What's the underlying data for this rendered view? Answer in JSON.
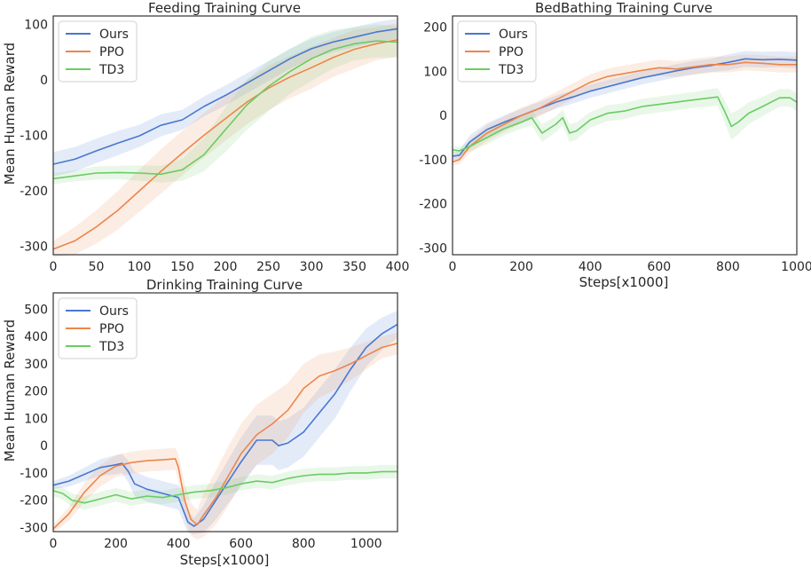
{
  "figure": {
    "colors": {
      "Ours": "#4878d0",
      "PPO": "#ee854a",
      "TD3": "#6acc64",
      "frame": "#333333",
      "legend_border": "#d0d0d0"
    }
  },
  "chart_data": [
    {
      "id": "feeding",
      "type": "line",
      "title": "Feeding Training Curve",
      "xlabel": "",
      "ylabel": "Mean Human Reward",
      "xlim": [
        0,
        400
      ],
      "ylim": [
        -315,
        115
      ],
      "xticks": [
        0,
        50,
        100,
        150,
        200,
        250,
        300,
        350,
        400
      ],
      "yticks": [
        -300,
        -200,
        -100,
        0,
        100
      ],
      "legend": "top-left",
      "series": [
        {
          "name": "Ours",
          "x": [
            0,
            25,
            50,
            75,
            100,
            125,
            150,
            175,
            200,
            225,
            250,
            275,
            300,
            325,
            350,
            375,
            400
          ],
          "y": [
            -152,
            -143,
            -128,
            -114,
            -101,
            -82,
            -72,
            -48,
            -28,
            -6,
            16,
            38,
            56,
            68,
            77,
            86,
            92
          ],
          "band": [
            22,
            22,
            22,
            22,
            20,
            20,
            18,
            18,
            18,
            18,
            18,
            18,
            18,
            18,
            18,
            18,
            18
          ]
        },
        {
          "name": "PPO",
          "x": [
            0,
            25,
            50,
            75,
            100,
            125,
            150,
            175,
            200,
            225,
            250,
            275,
            300,
            325,
            350,
            375,
            400
          ],
          "y": [
            -305,
            -290,
            -265,
            -235,
            -200,
            -165,
            -132,
            -100,
            -70,
            -40,
            -15,
            5,
            22,
            40,
            55,
            65,
            72
          ],
          "band": [
            15,
            25,
            30,
            35,
            38,
            40,
            40,
            40,
            40,
            40,
            40,
            38,
            38,
            35,
            35,
            30,
            30
          ]
        },
        {
          "name": "TD3",
          "x": [
            0,
            25,
            50,
            75,
            100,
            125,
            150,
            175,
            200,
            225,
            250,
            275,
            300,
            325,
            350,
            375,
            400
          ],
          "y": [
            -178,
            -173,
            -168,
            -167,
            -168,
            -170,
            -162,
            -135,
            -90,
            -45,
            -12,
            15,
            38,
            55,
            65,
            70,
            68
          ],
          "band": [
            10,
            10,
            12,
            12,
            14,
            15,
            20,
            30,
            40,
            45,
            45,
            40,
            40,
            35,
            30,
            30,
            28
          ]
        }
      ]
    },
    {
      "id": "bedbathing",
      "type": "line",
      "title": "BedBathing Training Curve",
      "xlabel": "Steps[x1000]",
      "ylabel": "",
      "xlim": [
        0,
        1000
      ],
      "ylim": [
        -315,
        225
      ],
      "xticks": [
        0,
        200,
        400,
        600,
        800,
        1000
      ],
      "yticks": [
        -300,
        -200,
        -100,
        0,
        100,
        200
      ],
      "legend": "top-left",
      "series": [
        {
          "name": "Ours",
          "x": [
            0,
            20,
            50,
            100,
            150,
            200,
            250,
            300,
            350,
            400,
            450,
            500,
            550,
            600,
            650,
            700,
            750,
            800,
            850,
            900,
            950,
            1000
          ],
          "y": [
            -92,
            -90,
            -60,
            -32,
            -15,
            0,
            15,
            30,
            42,
            55,
            65,
            75,
            85,
            93,
            101,
            108,
            113,
            120,
            128,
            126,
            127,
            125
          ],
          "band": [
            8,
            10,
            15,
            15,
            15,
            15,
            15,
            15,
            15,
            15,
            15,
            15,
            15,
            15,
            15,
            15,
            15,
            18,
            18,
            18,
            18,
            18
          ]
        },
        {
          "name": "PPO",
          "x": [
            0,
            20,
            50,
            100,
            150,
            200,
            250,
            300,
            350,
            400,
            450,
            500,
            550,
            600,
            650,
            700,
            750,
            800,
            850,
            900,
            950,
            1000
          ],
          "y": [
            -105,
            -100,
            -70,
            -40,
            -20,
            0,
            15,
            35,
            55,
            75,
            88,
            95,
            102,
            108,
            105,
            110,
            115,
            115,
            120,
            118,
            115,
            115
          ],
          "band": [
            8,
            10,
            15,
            18,
            18,
            18,
            18,
            18,
            18,
            18,
            18,
            18,
            18,
            18,
            18,
            18,
            18,
            18,
            18,
            18,
            18,
            18
          ]
        },
        {
          "name": "TD3",
          "x": [
            0,
            20,
            50,
            100,
            150,
            200,
            230,
            260,
            300,
            320,
            340,
            360,
            400,
            450,
            500,
            550,
            600,
            650,
            700,
            750,
            770,
            790,
            810,
            830,
            860,
            900,
            950,
            980,
            1000
          ],
          "y": [
            -78,
            -80,
            -70,
            -50,
            -30,
            -15,
            -5,
            -40,
            -20,
            -5,
            -40,
            -35,
            -10,
            5,
            10,
            20,
            25,
            30,
            35,
            40,
            42,
            10,
            -25,
            -15,
            5,
            20,
            40,
            40,
            30
          ],
          "band": [
            8,
            10,
            12,
            15,
            15,
            15,
            18,
            20,
            18,
            18,
            20,
            20,
            18,
            18,
            18,
            18,
            18,
            18,
            18,
            20,
            20,
            25,
            30,
            28,
            25,
            22,
            20,
            20,
            20
          ]
        }
      ]
    },
    {
      "id": "drinking",
      "type": "line",
      "title": "Drinking Training Curve",
      "xlabel": "Steps[x1000]",
      "ylabel": "Mean Human Reward",
      "xlim": [
        0,
        1100
      ],
      "ylim": [
        -315,
        560
      ],
      "xticks": [
        0,
        200,
        400,
        600,
        800,
        1000
      ],
      "yticks": [
        -300,
        -200,
        -100,
        0,
        100,
        200,
        300,
        400,
        500
      ],
      "legend": "top-left",
      "series": [
        {
          "name": "Ours",
          "x": [
            0,
            50,
            100,
            150,
            200,
            220,
            240,
            260,
            300,
            350,
            400,
            430,
            450,
            480,
            520,
            560,
            600,
            650,
            700,
            720,
            750,
            800,
            850,
            900,
            950,
            1000,
            1050,
            1100
          ],
          "y": [
            -145,
            -130,
            -105,
            -80,
            -70,
            -65,
            -95,
            -140,
            -160,
            -175,
            -190,
            -280,
            -295,
            -270,
            -200,
            -130,
            -60,
            20,
            20,
            0,
            10,
            50,
            120,
            190,
            280,
            360,
            410,
            445
          ],
          "band": [
            15,
            20,
            25,
            30,
            35,
            35,
            40,
            45,
            45,
            45,
            45,
            40,
            30,
            50,
            70,
            80,
            90,
            90,
            90,
            90,
            90,
            90,
            90,
            90,
            80,
            70,
            60,
            50
          ]
        },
        {
          "name": "PPO",
          "x": [
            0,
            50,
            100,
            150,
            200,
            250,
            300,
            350,
            390,
            400,
            420,
            440,
            460,
            480,
            520,
            560,
            600,
            650,
            700,
            750,
            800,
            850,
            900,
            950,
            1000,
            1050,
            1100
          ],
          "y": [
            -305,
            -250,
            -170,
            -110,
            -75,
            -62,
            -55,
            -52,
            -48,
            -80,
            -200,
            -270,
            -290,
            -255,
            -190,
            -110,
            -30,
            40,
            80,
            130,
            210,
            255,
            275,
            300,
            330,
            360,
            375
          ],
          "band": [
            15,
            25,
            35,
            40,
            40,
            40,
            40,
            40,
            40,
            50,
            60,
            60,
            55,
            80,
            100,
            110,
            110,
            110,
            110,
            100,
            90,
            80,
            70,
            60,
            50,
            40,
            40
          ]
        },
        {
          "name": "TD3",
          "x": [
            0,
            30,
            60,
            100,
            150,
            200,
            250,
            300,
            350,
            400,
            450,
            500,
            550,
            600,
            650,
            700,
            750,
            800,
            850,
            900,
            950,
            1000,
            1050,
            1100
          ],
          "y": [
            -165,
            -175,
            -200,
            -210,
            -195,
            -180,
            -195,
            -185,
            -190,
            -180,
            -170,
            -165,
            -155,
            -140,
            -130,
            -135,
            -120,
            -110,
            -105,
            -105,
            -100,
            -100,
            -95,
            -95
          ],
          "band": [
            20,
            22,
            25,
            25,
            25,
            25,
            25,
            25,
            25,
            25,
            25,
            25,
            25,
            25,
            25,
            25,
            25,
            25,
            25,
            25,
            25,
            25,
            25,
            25
          ]
        }
      ]
    }
  ]
}
